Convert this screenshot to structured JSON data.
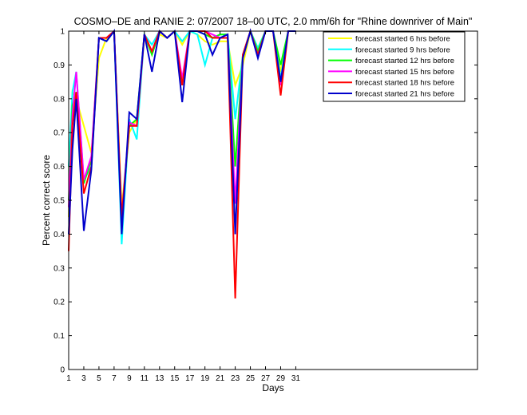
{
  "chart_data": {
    "type": "line",
    "title": "COSMO–DE and RANIE 2: 07/2007 18–00 UTC, 2.0 mm/6h for \"Rhine downriver of Main\"",
    "xlabel": "Days",
    "ylabel": "Percent correct score",
    "xlim": [
      1,
      55
    ],
    "ylim": [
      0,
      1
    ],
    "xticks": [
      1,
      3,
      5,
      7,
      9,
      11,
      13,
      15,
      17,
      19,
      21,
      23,
      25,
      27,
      29,
      31
    ],
    "yticks": [
      0,
      0.1,
      0.2,
      0.3,
      0.4,
      0.5,
      0.6,
      0.7,
      0.8,
      0.9,
      1
    ],
    "ytick_labels": [
      "0",
      "0.1",
      "0.2",
      "0.3",
      "0.4",
      "0.5",
      "0.6",
      "0.7",
      "0.8",
      "0.9",
      "1"
    ],
    "grid": false,
    "legend_position": "top-right",
    "x": [
      1,
      1.5,
      2,
      3,
      4,
      5,
      6,
      7,
      8,
      9,
      10,
      11,
      12,
      13,
      14,
      15,
      16,
      17,
      18,
      19,
      20,
      21,
      22,
      23,
      24,
      25,
      26,
      27,
      28,
      29,
      30,
      31
    ],
    "series": [
      {
        "name": "forecast started 6 hrs before",
        "color": "#ffff00",
        "values": [
          0.45,
          0.82,
          0.8,
          0.72,
          0.64,
          0.92,
          0.98,
          1.0,
          0.48,
          0.7,
          0.74,
          0.98,
          0.94,
          0.99,
          0.98,
          1.0,
          0.96,
          1.0,
          0.99,
          0.97,
          0.96,
          0.97,
          0.97,
          0.84,
          0.9,
          1.0,
          0.95,
          1.0,
          1.0,
          0.88,
          1.0,
          1.0
        ]
      },
      {
        "name": "forecast started 9 hrs before",
        "color": "#00ffff",
        "values": [
          0.6,
          0.82,
          0.88,
          0.56,
          0.6,
          0.98,
          0.97,
          1.0,
          0.37,
          0.74,
          0.68,
          0.99,
          0.96,
          1.0,
          0.98,
          1.0,
          0.97,
          1.0,
          0.99,
          0.9,
          0.98,
          0.99,
          0.99,
          0.74,
          0.93,
          1.0,
          0.95,
          1.0,
          1.0,
          0.86,
          1.0,
          1.0
        ]
      },
      {
        "name": "forecast started 12 hrs before",
        "color": "#00ff00",
        "values": [
          0.5,
          0.78,
          0.82,
          0.55,
          0.62,
          0.98,
          0.98,
          1.0,
          0.44,
          0.72,
          0.74,
          0.99,
          0.93,
          1.0,
          0.98,
          1.0,
          0.84,
          1.0,
          1.0,
          0.99,
          0.98,
          0.99,
          0.99,
          0.6,
          0.93,
          1.0,
          0.94,
          1.0,
          1.0,
          0.9,
          1.0,
          1.0
        ]
      },
      {
        "name": "forecast started 15 hrs before",
        "color": "#ff00ff",
        "values": [
          0.48,
          0.75,
          0.88,
          0.56,
          0.63,
          0.98,
          0.98,
          1.0,
          0.45,
          0.73,
          0.72,
          0.99,
          0.94,
          1.0,
          0.98,
          1.0,
          0.86,
          1.0,
          1.0,
          1.0,
          0.99,
          0.98,
          0.99,
          0.49,
          0.93,
          1.0,
          0.93,
          1.0,
          1.0,
          0.84,
          1.0,
          1.0
        ]
      },
      {
        "name": "forecast started 18 hrs before",
        "color": "#ff0000",
        "values": [
          0.35,
          0.72,
          0.82,
          0.52,
          0.6,
          0.98,
          0.98,
          1.0,
          0.45,
          0.72,
          0.72,
          0.99,
          0.94,
          1.0,
          0.98,
          1.0,
          0.84,
          1.0,
          1.0,
          1.0,
          0.98,
          0.98,
          0.98,
          0.21,
          0.93,
          1.0,
          0.93,
          1.0,
          1.0,
          0.81,
          1.0,
          1.0
        ]
      },
      {
        "name": "forecast started 21 hrs before",
        "color": "#0000cc",
        "values": [
          0.4,
          0.65,
          0.8,
          0.41,
          0.59,
          0.98,
          0.97,
          1.0,
          0.4,
          0.76,
          0.74,
          0.99,
          0.88,
          1.0,
          0.98,
          1.0,
          0.79,
          1.0,
          1.0,
          0.99,
          0.93,
          0.98,
          0.99,
          0.4,
          0.92,
          1.0,
          0.92,
          1.0,
          1.0,
          0.85,
          1.0,
          1.0
        ]
      }
    ]
  }
}
